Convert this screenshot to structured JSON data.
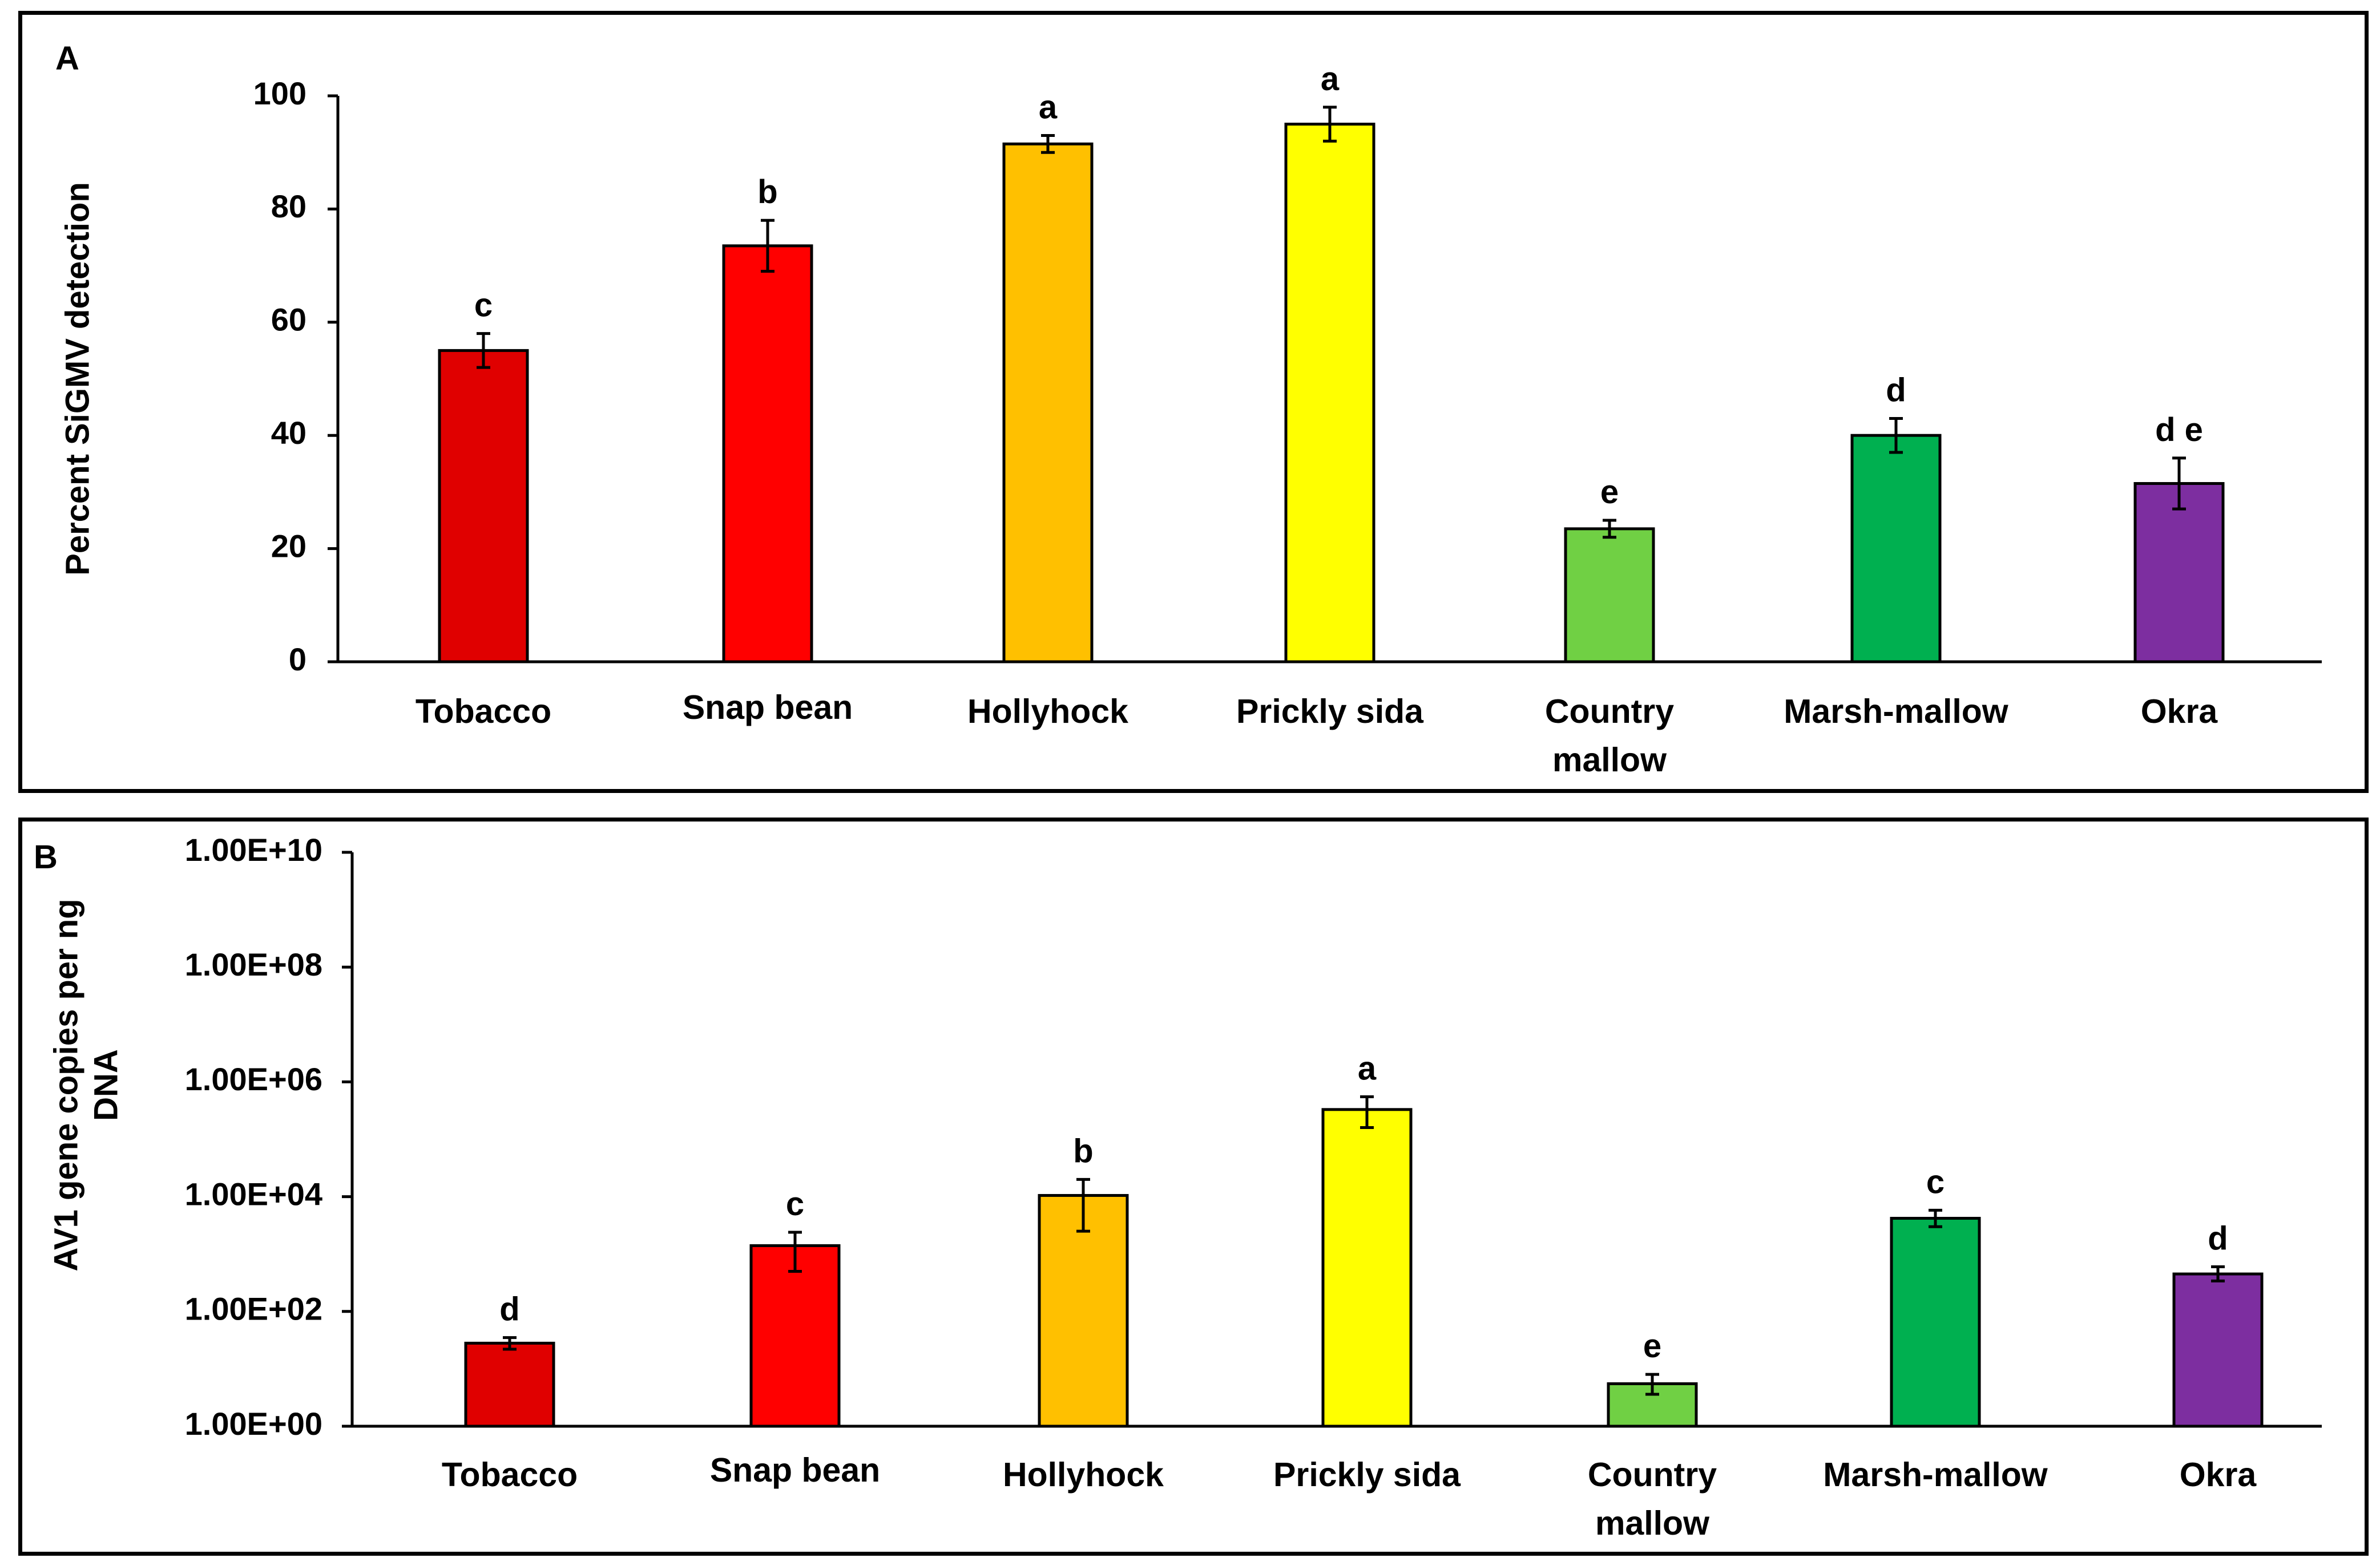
{
  "chart_data": [
    {
      "type": "bar",
      "panel_label": "A",
      "categories": [
        "Tobacco",
        "Snap bean",
        "Hollyhock",
        "Prickly sida",
        "Country mallow",
        "Marsh-mallow",
        "Okra"
      ],
      "category_lines": [
        [
          "Tobacco"
        ],
        [
          "Snap bean"
        ],
        [
          "Hollyhock"
        ],
        [
          "Prickly sida"
        ],
        [
          "Country",
          "mallow"
        ],
        [
          "Marsh-mallow"
        ],
        [
          "Okra"
        ]
      ],
      "values": [
        55,
        73.5,
        91.5,
        95,
        23.5,
        40,
        31.5
      ],
      "error": [
        3,
        4.5,
        1.5,
        3,
        1.5,
        3,
        4.5
      ],
      "letters": [
        "c",
        "b",
        "a",
        "a",
        "e",
        "d",
        "d e"
      ],
      "colors": [
        "#e00000",
        "#ff0000",
        "#ffc000",
        "#ffff00",
        "#70d044",
        "#00b050",
        "#7d2ea0"
      ],
      "ylabel": "Percent SiGMV detection",
      "xlabel": "",
      "ylim": [
        0,
        100
      ],
      "yticks": [
        0,
        20,
        40,
        60,
        80,
        100
      ],
      "ytick_labels": [
        "0",
        "20",
        "40",
        "60",
        "80",
        "100"
      ],
      "yscale": "linear"
    },
    {
      "type": "bar",
      "panel_label": "B",
      "categories": [
        "Tobacco",
        "Snap bean",
        "Hollyhock",
        "Prickly sida",
        "Country mallow",
        "Marsh-mallow",
        "Okra"
      ],
      "category_lines": [
        [
          "Tobacco"
        ],
        [
          "Snap bean"
        ],
        [
          "Hollyhock"
        ],
        [
          "Prickly sida"
        ],
        [
          "Country",
          "mallow"
        ],
        [
          "Marsh-mallow"
        ],
        [
          "Okra"
        ]
      ],
      "values": [
        28,
        1400,
        10500,
        330000,
        5.5,
        4200,
        450
      ],
      "error_low": [
        22,
        500,
        2500,
        160000,
        3.6,
        3000,
        340
      ],
      "error_high": [
        35,
        2400,
        20000,
        550000,
        8,
        5800,
        600
      ],
      "letters": [
        "d",
        "c",
        "b",
        "a",
        "e",
        "c",
        "d"
      ],
      "colors": [
        "#e00000",
        "#ff0000",
        "#ffc000",
        "#ffff00",
        "#70d044",
        "#00b050",
        "#7d2ea0"
      ],
      "ylabel_lines": [
        "AV1 gene copies per ng",
        "DNA"
      ],
      "xlabel": "",
      "ylim": [
        1,
        10000000000
      ],
      "yticks": [
        1,
        100,
        10000,
        1000000,
        100000000,
        10000000000
      ],
      "ytick_labels": [
        "1.00E+00",
        "1.00E+02",
        "1.00E+04",
        "1.00E+06",
        "1.00E+08",
        "1.00E+10"
      ],
      "yscale": "log"
    }
  ]
}
